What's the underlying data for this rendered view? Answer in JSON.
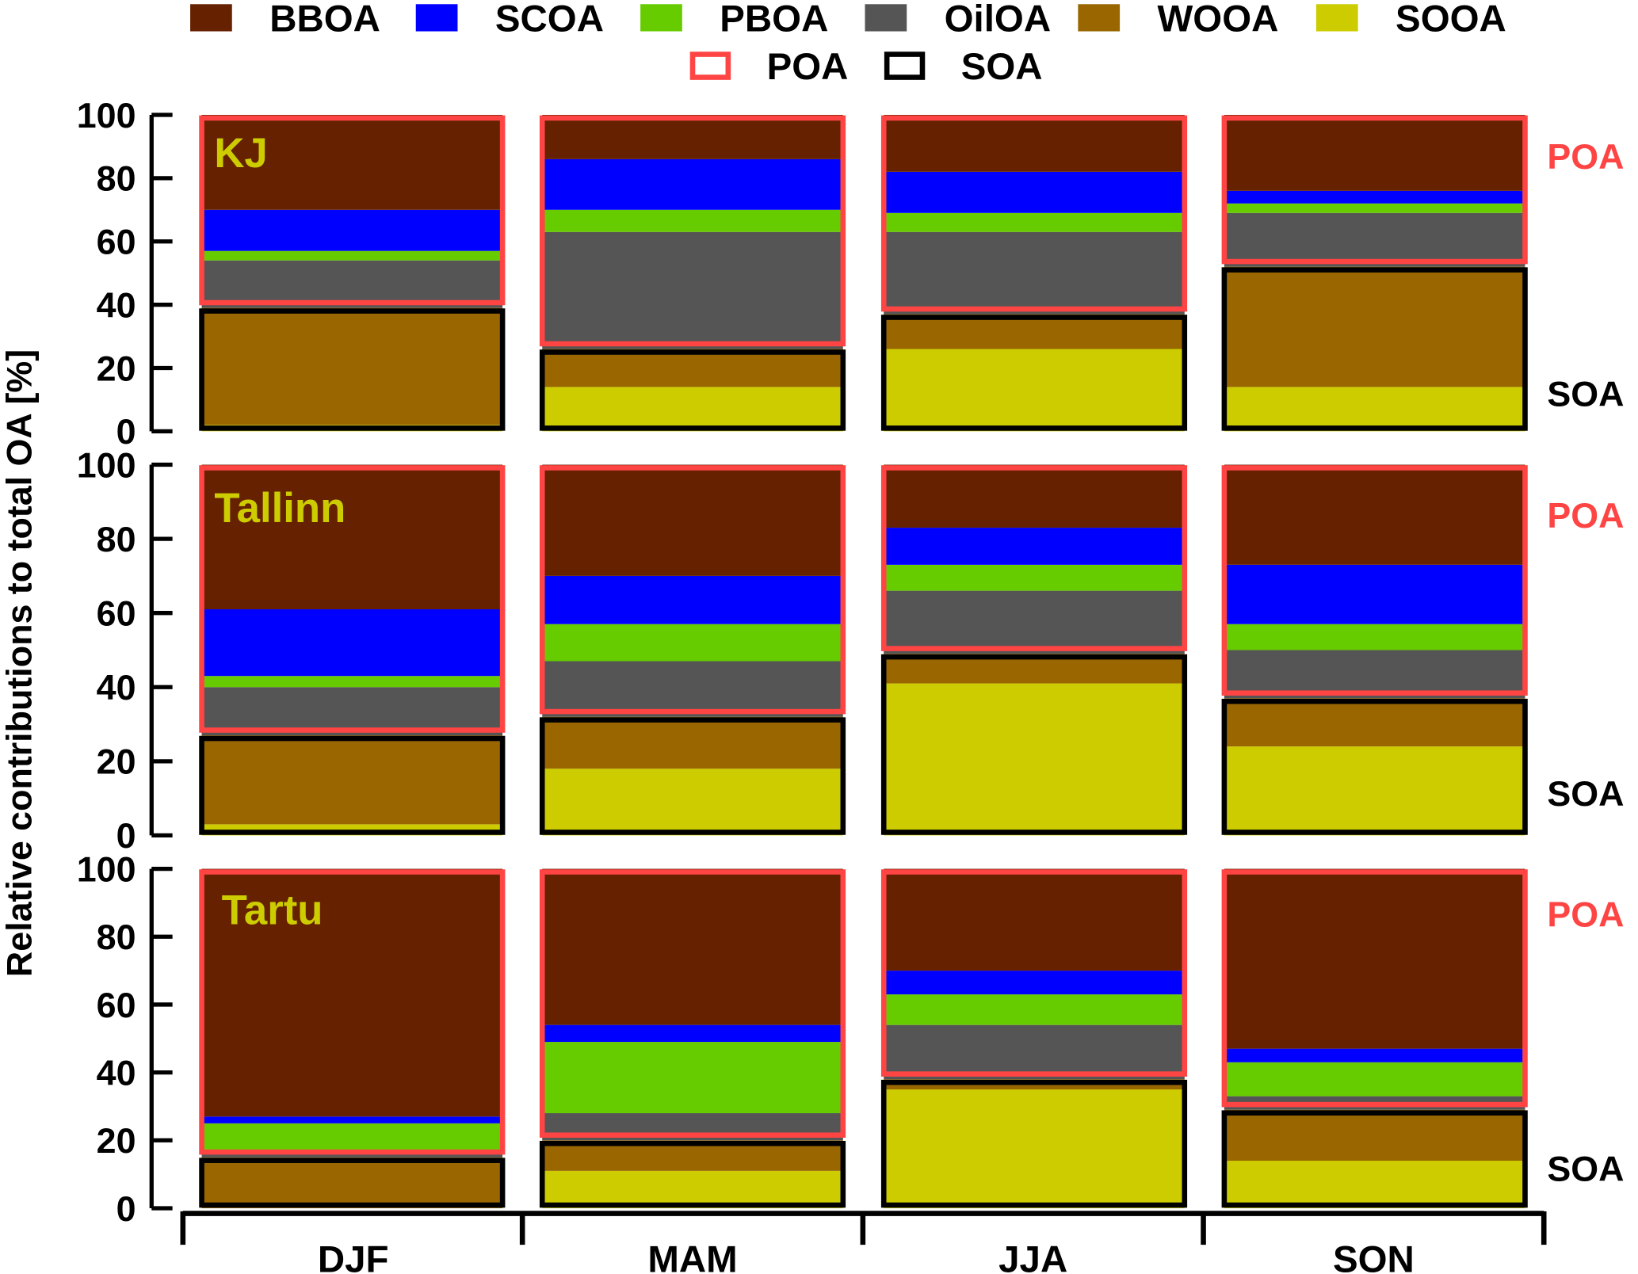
{
  "chart_data": {
    "type": "bar",
    "stacked": true,
    "ylabel": "Relative contributions to total OA [%]",
    "xlabel": "",
    "ylim": [
      0,
      100
    ],
    "yticks": [
      0,
      20,
      40,
      60,
      80,
      100
    ],
    "categories": [
      "DJF",
      "MAM",
      "JJA",
      "SON"
    ],
    "components": [
      {
        "name": "SOOA",
        "color": "#cccc00",
        "group": "SOA"
      },
      {
        "name": "WOOA",
        "color": "#996600",
        "group": "SOA"
      },
      {
        "name": "OilOA",
        "color": "#555555",
        "group": "POA"
      },
      {
        "name": "PBOA",
        "color": "#66cc00",
        "group": "POA"
      },
      {
        "name": "SCOA",
        "color": "#0000ff",
        "group": "POA"
      },
      {
        "name": "BBOA",
        "color": "#662200",
        "group": "POA"
      }
    ],
    "legend": {
      "placement": "top",
      "items": [
        "BBOA",
        "SCOA",
        "PBOA",
        "OilOA",
        "WOOA",
        "SOOA"
      ],
      "group_items": [
        {
          "name": "POA",
          "color": "#ff4444"
        },
        {
          "name": "SOA",
          "color": "#000000"
        }
      ]
    },
    "panels": [
      {
        "site": "KJ",
        "values": {
          "SOOA": [
            2,
            14,
            26,
            14
          ],
          "WOOA": [
            37,
            12,
            11,
            38
          ],
          "OilOA": [
            15,
            37,
            26,
            17
          ],
          "PBOA": [
            3,
            7,
            6,
            3
          ],
          "SCOA": [
            13,
            16,
            13,
            4
          ],
          "BBOA": [
            30,
            14,
            18,
            24
          ]
        }
      },
      {
        "site": "Tallinn",
        "values": {
          "SOOA": [
            3,
            18,
            41,
            24
          ],
          "WOOA": [
            24,
            14,
            8,
            13
          ],
          "OilOA": [
            13,
            15,
            17,
            13
          ],
          "PBOA": [
            3,
            10,
            7,
            7
          ],
          "SCOA": [
            18,
            13,
            10,
            16
          ],
          "BBOA": [
            39,
            30,
            17,
            27
          ]
        }
      },
      {
        "site": "Tartu",
        "values": {
          "SOOA": [
            0,
            11,
            35,
            14
          ],
          "WOOA": [
            15,
            9,
            3,
            15
          ],
          "OilOA": [
            1,
            8,
            16,
            4
          ],
          "PBOA": [
            9,
            21,
            9,
            10
          ],
          "SCOA": [
            2,
            5,
            7,
            4
          ],
          "BBOA": [
            73,
            46,
            30,
            53
          ]
        }
      }
    ],
    "group_labels": {
      "POA": "POA",
      "SOA": "SOA"
    },
    "site_label_color": "#cccc00"
  }
}
